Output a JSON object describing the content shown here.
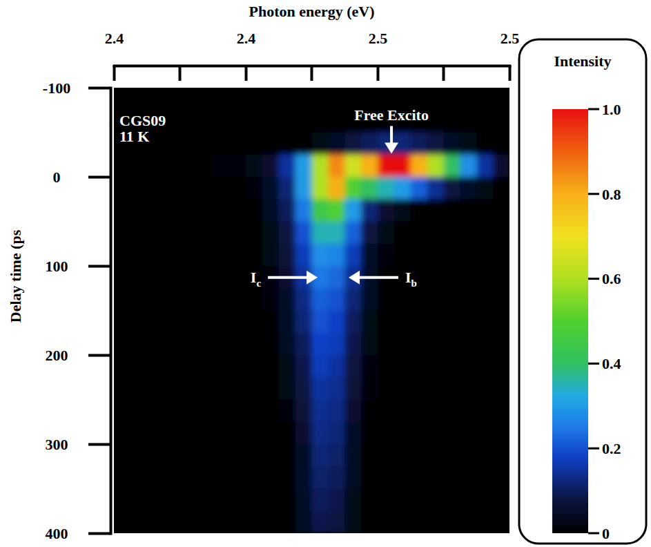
{
  "chart_data": {
    "type": "heatmap",
    "xlabel": "Photon energy (eV)",
    "ylabel": "Delay time (ps",
    "xlim": [
      2.4,
      2.52
    ],
    "xticks": [
      2.4,
      {
        "value": 2.44,
        "label": "2.4"
      },
      {
        "value": 2.48,
        "label": "2.5"
      },
      {
        "value": 2.52,
        "label": "2.5"
      }
    ],
    "xminor_ticks": [
      2.42,
      2.46,
      2.5
    ],
    "ylim": [
      -100,
      400
    ],
    "yticks": [
      -100,
      0,
      100,
      200,
      300,
      400
    ],
    "cell_x": [
      2.4,
      2.405,
      2.41,
      2.415,
      2.42,
      2.425,
      2.43,
      2.435,
      2.44,
      2.445,
      2.45,
      2.455,
      2.46,
      2.465,
      2.47,
      2.475,
      2.48,
      2.485,
      2.49,
      2.495,
      2.5,
      2.505,
      2.51,
      2.515,
      2.52
    ],
    "cell_y": [
      -100,
      -75,
      -50,
      -25,
      0,
      25,
      50,
      75,
      100,
      125,
      150,
      175,
      200,
      225,
      250,
      275,
      300,
      325,
      350,
      375,
      400
    ],
    "cells": [
      [
        0,
        0,
        0,
        0,
        0,
        0,
        0,
        0,
        0,
        0,
        0,
        0,
        0,
        0,
        0,
        0,
        0,
        0,
        0,
        0,
        0,
        0,
        0,
        0
      ],
      [
        0,
        0,
        0,
        0,
        0,
        0,
        0,
        0,
        0,
        0,
        0,
        0,
        0,
        0,
        0,
        0,
        0,
        0,
        0,
        0,
        0,
        0,
        0,
        0
      ],
      [
        0,
        0,
        0,
        0,
        0,
        0,
        0,
        0,
        0,
        0,
        0,
        0,
        0.03,
        0.05,
        0.08,
        0.1,
        0.12,
        0.12,
        0.1,
        0.08,
        0.05,
        0.03,
        0,
        0
      ],
      [
        0,
        0,
        0,
        0,
        0,
        0,
        0.01,
        0.02,
        0.03,
        0.06,
        0.15,
        0.3,
        0.6,
        0.85,
        0.65,
        0.8,
        1,
        1,
        0.8,
        0.6,
        0.4,
        0.28,
        0.15,
        0.06
      ],
      [
        0,
        0,
        0,
        0,
        0,
        0,
        0,
        0,
        0.02,
        0.05,
        0.12,
        0.3,
        0.6,
        0.8,
        0.5,
        0.4,
        0.35,
        0.3,
        0.22,
        0.14,
        0.08,
        0.05,
        0.03,
        0
      ],
      [
        0,
        0,
        0,
        0,
        0,
        0,
        0,
        0,
        0,
        0.04,
        0.1,
        0.25,
        0.45,
        0.5,
        0.3,
        0.12,
        0.06,
        0.03,
        0,
        0,
        0,
        0,
        0,
        0
      ],
      [
        0,
        0,
        0,
        0,
        0,
        0,
        0,
        0,
        0,
        0.03,
        0.08,
        0.2,
        0.35,
        0.35,
        0.22,
        0.08,
        0.03,
        0,
        0,
        0,
        0,
        0,
        0,
        0
      ],
      [
        0,
        0,
        0,
        0,
        0,
        0,
        0,
        0,
        0,
        0.03,
        0.07,
        0.17,
        0.28,
        0.27,
        0.17,
        0.05,
        0.02,
        0,
        0,
        0,
        0,
        0,
        0,
        0
      ],
      [
        0,
        0,
        0,
        0,
        0,
        0,
        0,
        0,
        0,
        0.02,
        0.06,
        0.15,
        0.25,
        0.23,
        0.14,
        0.04,
        0,
        0,
        0,
        0,
        0,
        0,
        0,
        0
      ],
      [
        0,
        0,
        0,
        0,
        0,
        0,
        0,
        0,
        0,
        0.02,
        0.05,
        0.13,
        0.22,
        0.2,
        0.12,
        0.04,
        0,
        0,
        0,
        0,
        0,
        0,
        0,
        0
      ],
      [
        0,
        0,
        0,
        0,
        0,
        0,
        0,
        0,
        0,
        0,
        0.05,
        0.12,
        0.2,
        0.18,
        0.1,
        0.03,
        0,
        0,
        0,
        0,
        0,
        0,
        0,
        0
      ],
      [
        0,
        0,
        0,
        0,
        0,
        0,
        0,
        0,
        0,
        0,
        0.04,
        0.1,
        0.18,
        0.17,
        0.09,
        0.03,
        0,
        0,
        0,
        0,
        0,
        0,
        0,
        0
      ],
      [
        0,
        0,
        0,
        0,
        0,
        0,
        0,
        0,
        0,
        0,
        0.03,
        0.09,
        0.17,
        0.15,
        0.08,
        0.02,
        0,
        0,
        0,
        0,
        0,
        0,
        0,
        0
      ],
      [
        0,
        0,
        0,
        0,
        0,
        0,
        0,
        0,
        0,
        0,
        0.03,
        0.08,
        0.15,
        0.14,
        0.07,
        0.02,
        0,
        0,
        0,
        0,
        0,
        0,
        0,
        0
      ],
      [
        0,
        0,
        0,
        0,
        0,
        0,
        0,
        0,
        0,
        0,
        0.02,
        0.07,
        0.14,
        0.13,
        0.06,
        0,
        0,
        0,
        0,
        0,
        0,
        0,
        0,
        0
      ],
      [
        0,
        0,
        0,
        0,
        0,
        0,
        0,
        0,
        0,
        0,
        0,
        0.06,
        0.13,
        0.12,
        0.05,
        0,
        0,
        0,
        0,
        0,
        0,
        0,
        0,
        0
      ],
      [
        0,
        0,
        0,
        0,
        0,
        0,
        0,
        0,
        0,
        0,
        0,
        0.05,
        0.12,
        0.11,
        0.04,
        0,
        0,
        0,
        0,
        0,
        0,
        0,
        0,
        0
      ],
      [
        0,
        0,
        0,
        0,
        0,
        0,
        0,
        0,
        0,
        0,
        0,
        0.05,
        0.11,
        0.1,
        0.04,
        0,
        0,
        0,
        0,
        0,
        0,
        0,
        0,
        0
      ],
      [
        0,
        0,
        0,
        0,
        0,
        0,
        0,
        0,
        0,
        0,
        0,
        0.04,
        0.1,
        0.09,
        0.03,
        0,
        0,
        0,
        0,
        0,
        0,
        0,
        0,
        0
      ],
      [
        0,
        0,
        0,
        0,
        0,
        0,
        0,
        0,
        0,
        0,
        0,
        0.04,
        0.09,
        0.08,
        0.03,
        0,
        0,
        0,
        0,
        0,
        0,
        0,
        0,
        0
      ]
    ],
    "colorbar": {
      "title": "Intensity",
      "range": [
        0,
        1
      ],
      "ticks": [
        {
          "value": 1,
          "label": "1.0"
        },
        0.8,
        0.6,
        0.4,
        0.2,
        0
      ]
    },
    "annotations": [
      {
        "text": "CGS09"
      },
      {
        "text": "11 K"
      },
      {
        "text": "Free Excito",
        "x": 2.4842,
        "y": -26,
        "arrow": "down"
      },
      {
        "text": "I",
        "subscript": "c",
        "x": 2.4618,
        "y": 113,
        "arrow": "right"
      },
      {
        "text": "I",
        "subscript": "b",
        "x": 2.4712,
        "y": 113,
        "arrow": "left"
      }
    ]
  }
}
